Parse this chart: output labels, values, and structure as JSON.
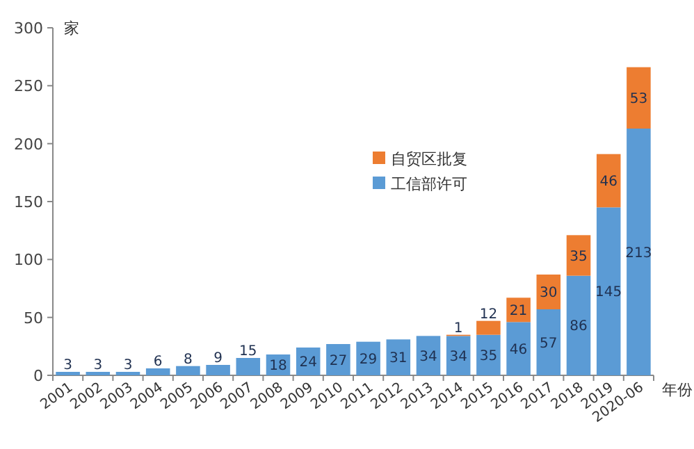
{
  "chart_data": {
    "type": "bar",
    "stacked": true,
    "data_labels": true,
    "legend": "top",
    "ylabel": "家",
    "xlabel": "年份",
    "categories": [
      "2001",
      "2002",
      "2003",
      "2004",
      "2005",
      "2006",
      "2007",
      "2008",
      "2009",
      "2010",
      "2011",
      "2012",
      "2013",
      "2014",
      "2015",
      "2016",
      "2017",
      "2018",
      "2019",
      "2020-06"
    ],
    "series": [
      {
        "name": "工信部许可",
        "color": "#5b9bd5",
        "values": [
          3,
          3,
          3,
          6,
          8,
          9,
          15,
          18,
          24,
          27,
          29,
          31,
          34,
          34,
          35,
          46,
          57,
          86,
          145,
          213
        ]
      },
      {
        "name": "自贸区批复",
        "color": "#ed7d31",
        "values": [
          null,
          null,
          null,
          null,
          null,
          null,
          null,
          null,
          null,
          null,
          null,
          null,
          null,
          1,
          12,
          21,
          30,
          35,
          46,
          53
        ]
      }
    ],
    "ylim": [
      0,
      300
    ],
    "yticks": [
      0,
      50,
      100,
      150,
      200,
      250,
      300
    ]
  }
}
